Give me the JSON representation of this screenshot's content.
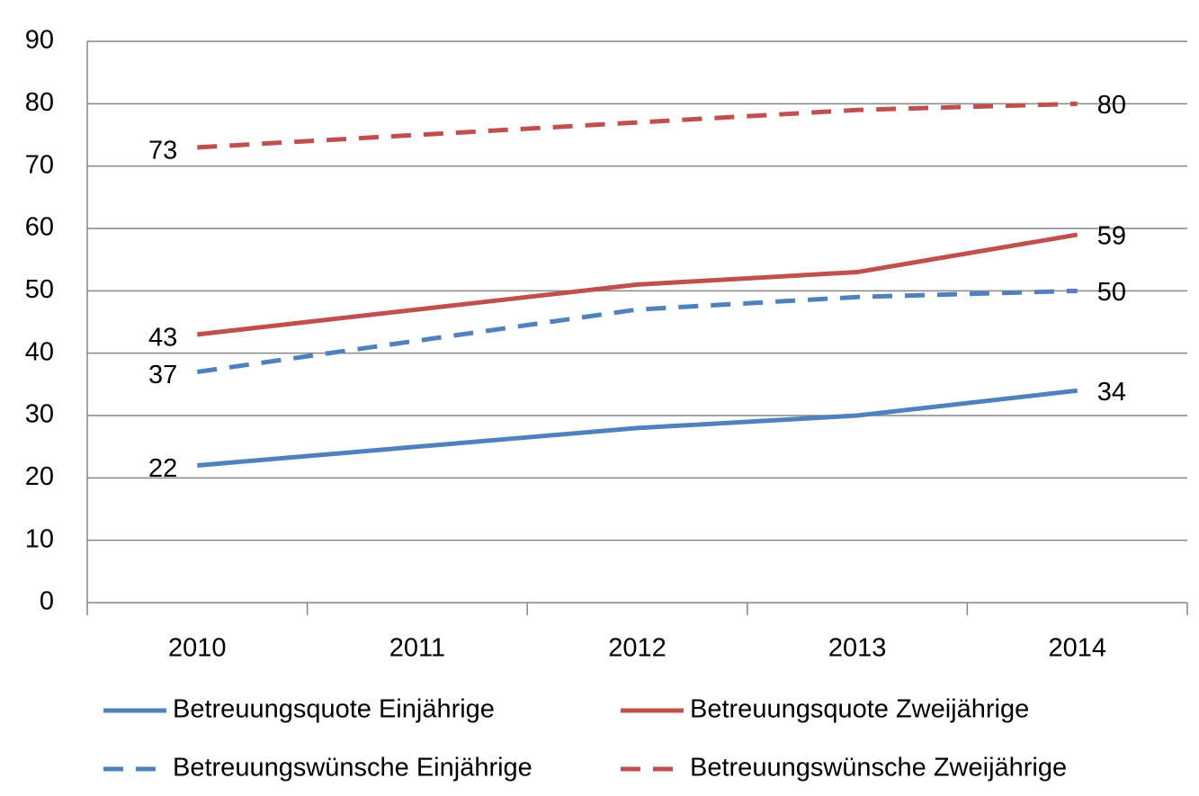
{
  "chart_data": {
    "type": "line",
    "categories": [
      "2010",
      "2011",
      "2012",
      "2013",
      "2014"
    ],
    "series": [
      {
        "name": "Betreuungsquote Einjährige",
        "color": "#4f81bd",
        "dash": false,
        "values": [
          22,
          25,
          28,
          30,
          34
        ]
      },
      {
        "name": "Betreuungsquote Zweijährige",
        "color": "#c0504d",
        "dash": false,
        "values": [
          43,
          47,
          51,
          53,
          59
        ]
      },
      {
        "name": "Betreuungswünsche Einjährige",
        "color": "#4f81bd",
        "dash": true,
        "values": [
          37,
          42,
          47,
          49,
          50
        ]
      },
      {
        "name": "Betreuungswünsche Zweijährige",
        "color": "#c0504d",
        "dash": true,
        "values": [
          73,
          75,
          77,
          79,
          80
        ]
      }
    ],
    "ylim": [
      0,
      90
    ],
    "yticks": [
      0,
      10,
      20,
      30,
      40,
      50,
      60,
      70,
      80,
      90
    ],
    "grid": true,
    "legend": "bottom"
  }
}
